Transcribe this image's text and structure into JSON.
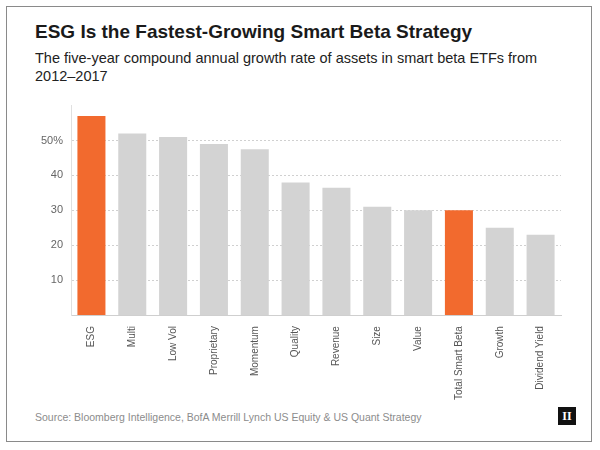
{
  "chart_data": {
    "type": "bar",
    "title": "ESG Is the Fastest-Growing Smart Beta Strategy",
    "subtitle": "The five-year compound annual growth rate of assets in smart beta ETFs from 2012–2017",
    "source": "Source: Bloomberg Intelligence, BofA Merrill Lynch US Equity & US Quant Strategy",
    "logo": "II",
    "categories": [
      "ESG",
      "Multi",
      "Low Vol",
      "Proprietary",
      "Momentum",
      "Quality",
      "Revenue",
      "Size",
      "Value",
      "Total Smart Beta",
      "Growth",
      "Dividend Yield"
    ],
    "values": [
      57,
      52,
      51,
      49,
      47.5,
      38,
      36.5,
      31,
      30,
      30,
      25,
      23
    ],
    "colors": [
      "#f26a2e",
      "#d3d3d3",
      "#d3d3d3",
      "#d3d3d3",
      "#d3d3d3",
      "#d3d3d3",
      "#d3d3d3",
      "#d3d3d3",
      "#d3d3d3",
      "#f26a2e",
      "#d3d3d3",
      "#d3d3d3"
    ],
    "ylim": [
      0,
      60
    ],
    "yticks": [
      10,
      20,
      30,
      40,
      {
        "value": 50,
        "label": "50%"
      }
    ],
    "grid": true
  }
}
